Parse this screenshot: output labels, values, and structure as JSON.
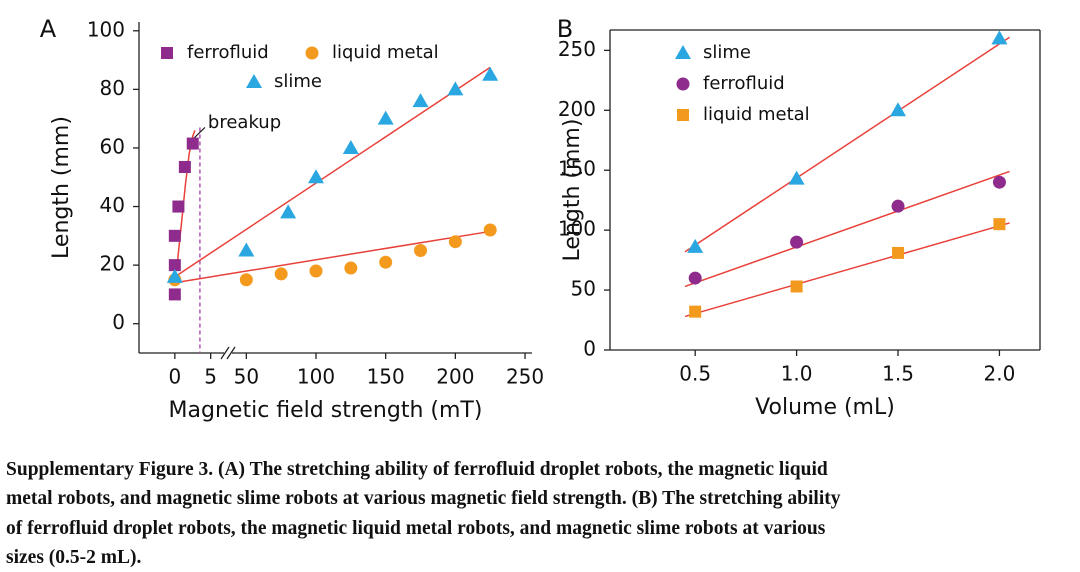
{
  "chart_data": [
    {
      "type": "scatter",
      "panel_label": "A",
      "x_label": "Magnetic field strength (mT)",
      "y_label": "Length (mm)",
      "xlim": [
        -5,
        255
      ],
      "xbreak": [
        7,
        39
      ],
      "ylim": [
        -10,
        103
      ],
      "xticks": [
        0,
        5,
        50,
        100,
        150,
        200,
        250
      ],
      "yticks": [
        0,
        20,
        40,
        60,
        80,
        100
      ],
      "series": [
        {
          "name": "ferrofluid",
          "color": "#8e2b8c",
          "marker": "square",
          "x": [
            0,
            0,
            0,
            0.5,
            1.4,
            2.5
          ],
          "values": [
            10,
            20,
            30,
            40,
            53.5,
            61.5
          ]
        },
        {
          "name": "liquid metal",
          "color": "#f39a1e",
          "marker": "circle",
          "x": [
            0,
            50,
            75,
            100,
            125,
            150,
            175,
            200,
            225
          ],
          "values": [
            15,
            15,
            17,
            18,
            19,
            21,
            25,
            28,
            32
          ]
        },
        {
          "name": "slime",
          "color": "#2aa7e0",
          "marker": "triangle",
          "x": [
            0,
            50,
            80,
            100,
            125,
            150,
            175,
            200,
            225
          ],
          "values": [
            16,
            25,
            38,
            50,
            60,
            70,
            76,
            80,
            85
          ]
        }
      ],
      "fits": [
        {
          "color": "#e8413a",
          "x": [
            -0.3,
            0.4,
            1,
            1.5,
            2,
            2.5,
            2.8
          ],
          "values": [
            13,
            22,
            36,
            48,
            58,
            64,
            66
          ]
        },
        {
          "color": "#e8413a",
          "x": [
            0,
            225
          ],
          "values": [
            14,
            31.5
          ]
        },
        {
          "color": "#e8413a",
          "x": [
            0,
            225
          ],
          "values": [
            16,
            87.5
          ]
        }
      ],
      "breakup_x": 3.5,
      "annotation": "breakup"
    },
    {
      "type": "scatter",
      "panel_label": "B",
      "x_label": "Volume (mL)",
      "y_label": "Length (mm)",
      "xlim": [
        0.08,
        2.2
      ],
      "ylim": [
        0,
        267
      ],
      "xticks": [
        {
          "value": 0.5,
          "label": "0.5"
        },
        {
          "value": 1,
          "label": "1.0"
        },
        {
          "value": 1.5,
          "label": "1.5"
        },
        {
          "value": 2,
          "label": "2.0"
        }
      ],
      "yticks": [
        0,
        50,
        100,
        150,
        200,
        250
      ],
      "series": [
        {
          "name": "slime",
          "color": "#2aa7e0",
          "marker": "triangle",
          "x": [
            0.5,
            1,
            1.5,
            2
          ],
          "values": [
            86,
            143,
            200,
            260
          ]
        },
        {
          "name": "ferrofluid",
          "color": "#8e2b8c",
          "marker": "circle",
          "x": [
            0.5,
            1,
            1.5,
            2
          ],
          "values": [
            60,
            90,
            120,
            140
          ]
        },
        {
          "name": "liquid metal",
          "color": "#f39a1e",
          "marker": "square",
          "x": [
            0.5,
            1,
            1.5,
            2
          ],
          "values": [
            32,
            53,
            81,
            105
          ]
        }
      ],
      "fits": [
        {
          "color": "#e8413a",
          "x": [
            0.45,
            2.05
          ],
          "values": [
            82,
            261
          ]
        },
        {
          "color": "#e8413a",
          "x": [
            0.45,
            2.05
          ],
          "values": [
            53,
            149
          ]
        },
        {
          "color": "#e8413a",
          "x": [
            0.45,
            2.05
          ],
          "values": [
            28,
            106
          ]
        }
      ]
    }
  ],
  "caption": [
    "Supplementary Figure 3. (A) The stretching ability of ferrofluid droplet robots, the magnetic liquid",
    "metal robots, and magnetic slime robots at various magnetic field strength. (B) The stretching ability",
    "of ferrofluid droplet robots, the magnetic liquid metal robots, and magnetic slime robots at various",
    "sizes (0.5-2 mL)."
  ]
}
